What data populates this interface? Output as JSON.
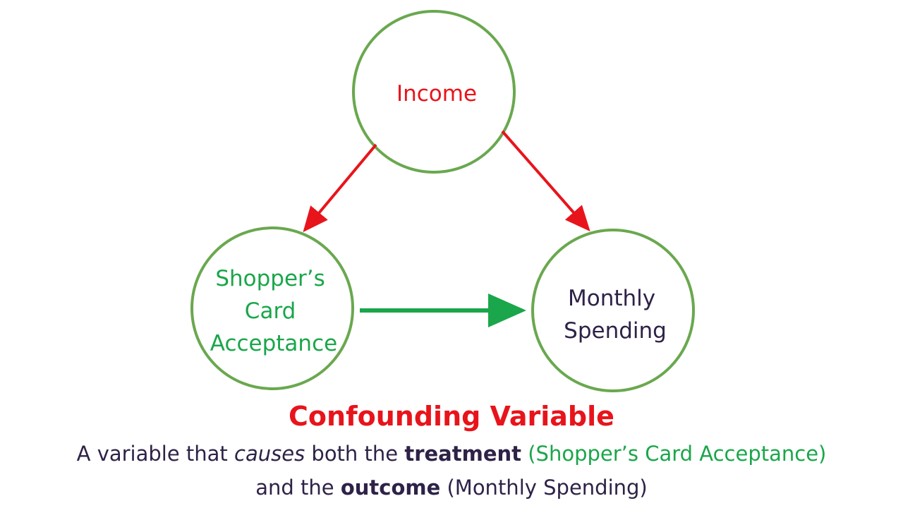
{
  "nodes": {
    "income": {
      "label": "Income"
    },
    "treatment": {
      "lines": [
        "Shopper’s",
        "Card",
        "Acceptance"
      ]
    },
    "outcome": {
      "lines": [
        "Monthly",
        "Spending"
      ]
    }
  },
  "caption": {
    "title": "Confounding Variable",
    "line1": {
      "prefix": "A variable that ",
      "causes": "causes",
      "both_the": " both the ",
      "treatment": "treatment",
      "treatment_paren": " (Shopper’s Card Acceptance)"
    },
    "line2": {
      "and_the": "and the ",
      "outcome": "outcome",
      "outcome_paren": " (Monthly Spending)"
    }
  },
  "colors": {
    "circle_stroke": "#6aa84f",
    "income_text": "#e8141b",
    "red_arrow": "#e8141b",
    "treatment_text": "#1aa64a",
    "green_arrow": "#1aa64a",
    "outcome_text": "#2e2247",
    "body_text": "#2e2247"
  }
}
